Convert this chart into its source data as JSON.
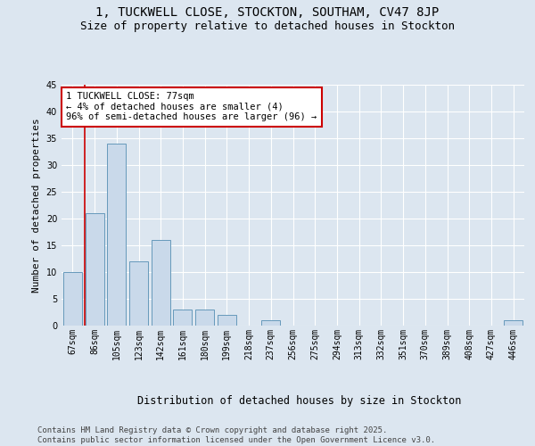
{
  "title1": "1, TUCKWELL CLOSE, STOCKTON, SOUTHAM, CV47 8JP",
  "title2": "Size of property relative to detached houses in Stockton",
  "xlabel": "Distribution of detached houses by size in Stockton",
  "ylabel": "Number of detached properties",
  "categories": [
    "67sqm",
    "86sqm",
    "105sqm",
    "123sqm",
    "142sqm",
    "161sqm",
    "180sqm",
    "199sqm",
    "218sqm",
    "237sqm",
    "256sqm",
    "275sqm",
    "294sqm",
    "313sqm",
    "332sqm",
    "351sqm",
    "370sqm",
    "389sqm",
    "408sqm",
    "427sqm",
    "446sqm"
  ],
  "values": [
    10,
    21,
    34,
    12,
    16,
    3,
    3,
    2,
    0,
    1,
    0,
    0,
    0,
    0,
    0,
    0,
    0,
    0,
    0,
    0,
    1
  ],
  "bar_color": "#c9d9ea",
  "bar_edge_color": "#6699bb",
  "annotation_line1": "1 TUCKWELL CLOSE: 77sqm",
  "annotation_line2": "← 4% of detached houses are smaller (4)",
  "annotation_line3": "96% of semi-detached houses are larger (96) →",
  "annotation_box_color": "#ffffff",
  "annotation_box_edge_color": "#cc0000",
  "vline_color": "#cc0000",
  "ylim": [
    0,
    45
  ],
  "yticks": [
    0,
    5,
    10,
    15,
    20,
    25,
    30,
    35,
    40,
    45
  ],
  "bg_color": "#dce6f0",
  "plot_bg_color": "#dce6f0",
  "footer_text": "Contains HM Land Registry data © Crown copyright and database right 2025.\nContains public sector information licensed under the Open Government Licence v3.0.",
  "title1_fontsize": 10,
  "title2_fontsize": 9,
  "xlabel_fontsize": 8.5,
  "ylabel_fontsize": 8,
  "footer_fontsize": 6.5,
  "tick_fontsize": 7,
  "annotation_fontsize": 7.5
}
